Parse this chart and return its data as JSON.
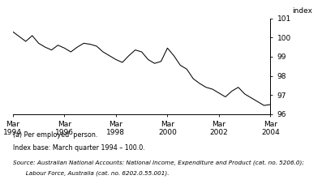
{
  "title": "",
  "ylabel": "index",
  "ylim": [
    96,
    101
  ],
  "yticks": [
    96,
    97,
    98,
    99,
    100,
    101
  ],
  "x_tick_labels": [
    "Mar\n1994",
    "Mar\n1996",
    "Mar\n1998",
    "Mar\n2000",
    "Mar\n2002",
    "Mar\n2004"
  ],
  "x_tick_positions": [
    0,
    8,
    16,
    24,
    32,
    40
  ],
  "footnote1": "(a) Per employed  person.",
  "footnote2": "Index base: March quarter 1994 – 100.0.",
  "source_line1": "Source: Australian National Accounts: National Income, Expenditure and Product (cat. no. 5206.0);",
  "source_line2": "       Labour Force, Australia (cat. no. 6202.0.55.001).",
  "line_color": "#000000",
  "background_color": "#ffffff",
  "values": [
    100.3,
    100.05,
    99.8,
    100.1,
    99.7,
    99.5,
    99.35,
    99.6,
    99.45,
    99.25,
    99.5,
    99.7,
    99.65,
    99.55,
    99.25,
    99.05,
    98.85,
    98.7,
    99.05,
    99.35,
    99.25,
    98.85,
    98.65,
    98.75,
    99.45,
    99.05,
    98.55,
    98.35,
    97.85,
    97.6,
    97.4,
    97.3,
    97.1,
    96.9,
    97.2,
    97.4,
    97.05,
    96.85,
    96.65,
    96.45,
    96.5
  ]
}
